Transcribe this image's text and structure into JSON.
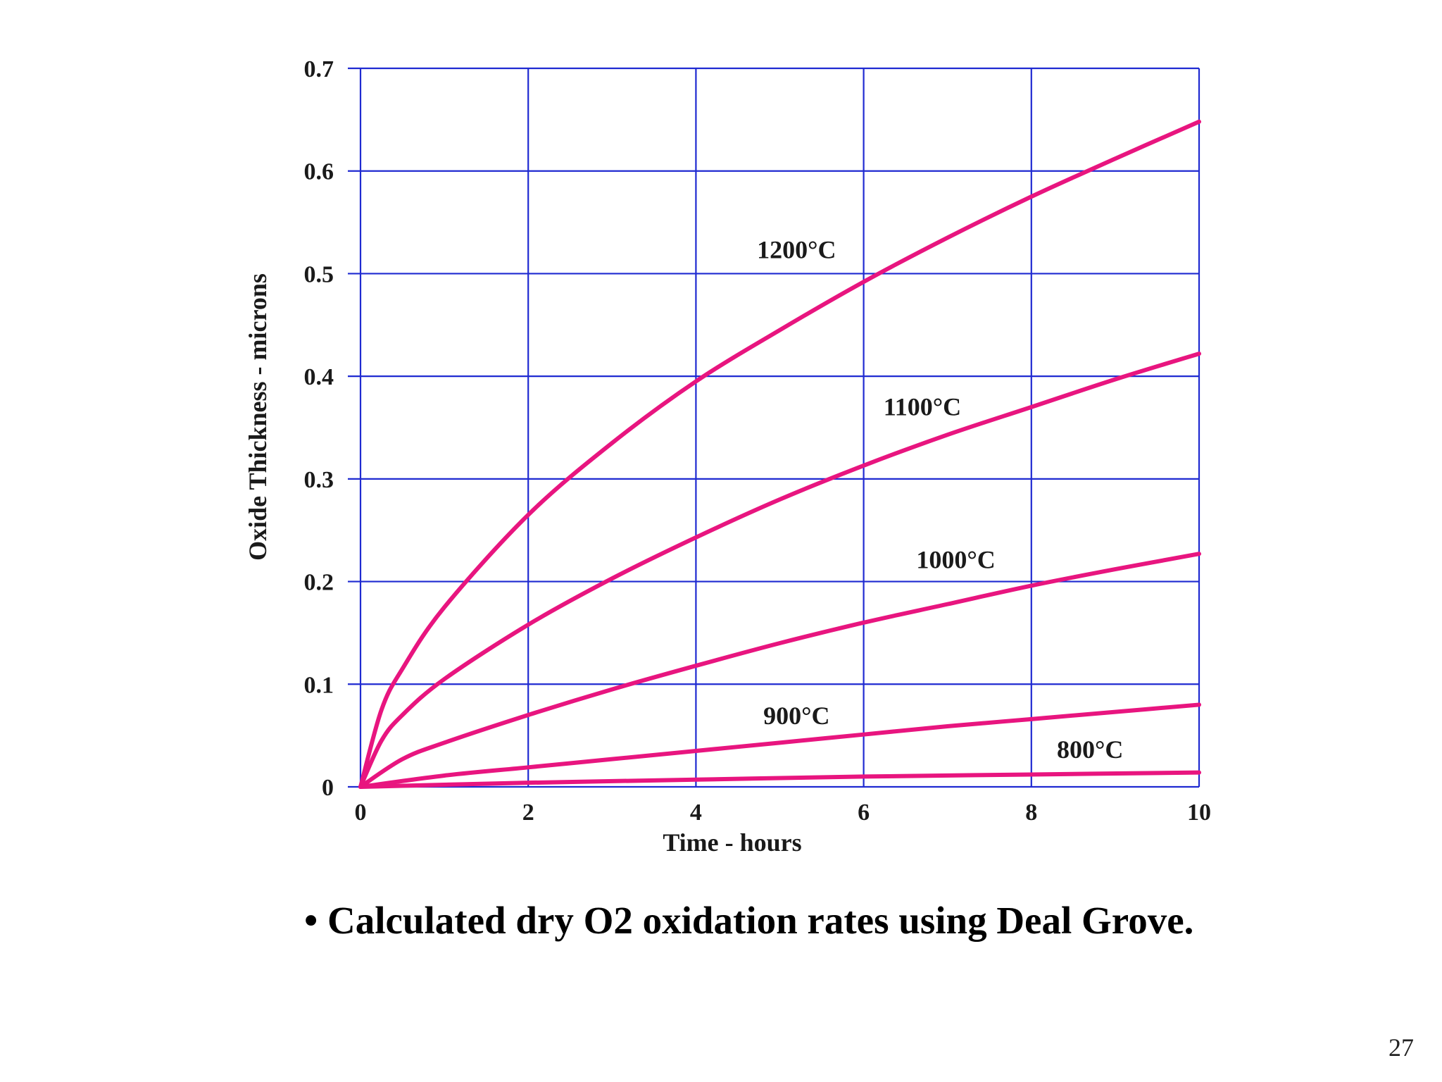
{
  "chart_data": {
    "type": "line",
    "xlabel": "Time - hours",
    "ylabel": "Oxide Thickness - microns",
    "xlim": [
      0,
      10
    ],
    "ylim": [
      0,
      0.7
    ],
    "x_ticks": [
      "0",
      "2",
      "4",
      "6",
      "8",
      "10"
    ],
    "y_ticks": [
      "0",
      "0.1",
      "0.2",
      "0.3",
      "0.4",
      "0.5",
      "0.6",
      "0.7"
    ],
    "grid": true,
    "grid_color": "#1f2ad1",
    "series_color": "#e8157f",
    "series": [
      {
        "name": "1200°C",
        "x": [
          0,
          0.25,
          0.5,
          1,
          2,
          3,
          4,
          5,
          6,
          7,
          8,
          9,
          10
        ],
        "y": [
          0,
          0.075,
          0.115,
          0.175,
          0.265,
          0.335,
          0.395,
          0.445,
          0.492,
          0.535,
          0.575,
          0.612,
          0.648
        ]
      },
      {
        "name": "1100°C",
        "x": [
          0,
          0.25,
          0.5,
          1,
          2,
          3,
          4,
          5,
          6,
          7,
          8,
          9,
          10
        ],
        "y": [
          0,
          0.045,
          0.07,
          0.105,
          0.158,
          0.203,
          0.243,
          0.28,
          0.313,
          0.343,
          0.37,
          0.397,
          0.422
        ]
      },
      {
        "name": "1000°C",
        "x": [
          0,
          0.5,
          1,
          2,
          3,
          4,
          5,
          6,
          7,
          8,
          9,
          10
        ],
        "y": [
          0,
          0.027,
          0.043,
          0.07,
          0.095,
          0.118,
          0.14,
          0.16,
          0.178,
          0.196,
          0.212,
          0.227
        ]
      },
      {
        "name": "900°C",
        "x": [
          0,
          1,
          2,
          3,
          4,
          5,
          6,
          7,
          8,
          9,
          10
        ],
        "y": [
          0,
          0.011,
          0.019,
          0.027,
          0.035,
          0.043,
          0.051,
          0.059,
          0.066,
          0.073,
          0.08
        ]
      },
      {
        "name": "800°C",
        "x": [
          0,
          2,
          4,
          6,
          8,
          10
        ],
        "y": [
          0,
          0.004,
          0.007,
          0.01,
          0.012,
          0.014
        ]
      }
    ]
  },
  "caption": "• Calculated dry O2 oxidation rates using Deal Grove.",
  "page_number": "27"
}
